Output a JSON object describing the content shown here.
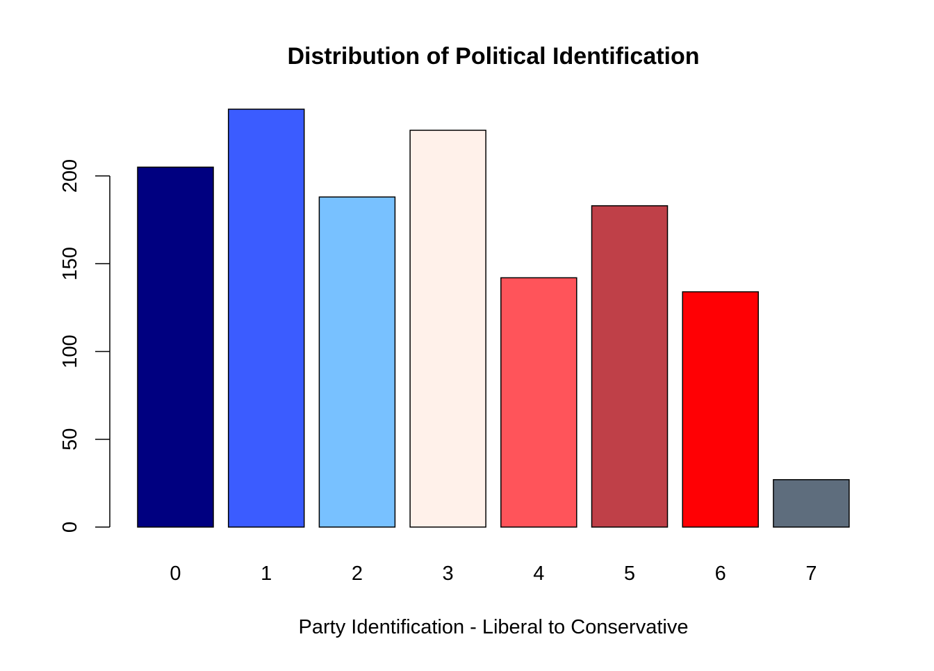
{
  "chart_data": {
    "type": "bar",
    "title": "Distribution of Political Identification",
    "xlabel": "Party Identification - Liberal to Conservative",
    "ylabel": "",
    "categories": [
      "0",
      "1",
      "2",
      "3",
      "4",
      "5",
      "6",
      "7"
    ],
    "values": [
      205,
      238,
      188,
      226,
      142,
      183,
      134,
      27
    ],
    "colors": [
      "#000080",
      "#3b5cff",
      "#78c1ff",
      "#fff1ea",
      "#ff545a",
      "#bf4048",
      "#ff0004",
      "#5e6d7d"
    ],
    "yticks": [
      0,
      50,
      100,
      150,
      200
    ],
    "ylim": [
      0,
      238
    ],
    "grid": false,
    "legend": "none"
  }
}
